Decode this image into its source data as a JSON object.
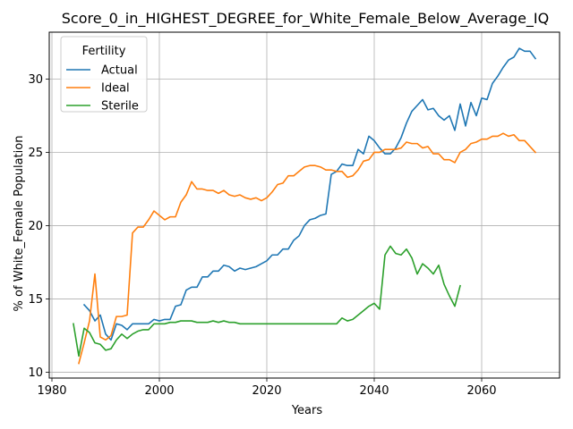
{
  "chart_data": {
    "type": "line",
    "title": "Score_0_in_HIGHEST_DEGREE_for_White_Female_Below_Average_IQ",
    "xlabel": "Years",
    "ylabel": "% of White_Female Population",
    "xlim": [
      1979.5,
      2074.5
    ],
    "ylim": [
      9.6,
      33.2
    ],
    "xticks": [
      1980,
      2000,
      2020,
      2040,
      2060
    ],
    "yticks": [
      10,
      15,
      20,
      25,
      30
    ],
    "grid": true,
    "legend": {
      "title": "Fertility",
      "placement": "top-left"
    },
    "colors": {
      "Actual": "#1f77b4",
      "Ideal": "#ff7f0e",
      "Sterile": "#2ca02c"
    },
    "series": [
      {
        "name": "Actual",
        "x": [
          1986,
          1987,
          1988,
          1989,
          1990,
          1991,
          1992,
          1993,
          1994,
          1995,
          1996,
          1997,
          1998,
          1999,
          2000,
          2001,
          2002,
          2003,
          2004,
          2005,
          2006,
          2007,
          2008,
          2009,
          2010,
          2011,
          2012,
          2013,
          2014,
          2015,
          2016,
          2017,
          2018,
          2019,
          2020,
          2021,
          2022,
          2023,
          2024,
          2025,
          2026,
          2027,
          2028,
          2029,
          2030,
          2031,
          2032,
          2033,
          2034,
          2035,
          2036,
          2037,
          2038,
          2039,
          2040,
          2041,
          2042,
          2043,
          2044,
          2045,
          2046,
          2047,
          2048,
          2049,
          2050,
          2051,
          2052,
          2053,
          2054,
          2055,
          2056,
          2057,
          2058,
          2059,
          2060,
          2061,
          2062,
          2063,
          2064,
          2065,
          2066,
          2067,
          2068,
          2069,
          2070
        ],
        "y": [
          14.6,
          14.2,
          13.5,
          13.9,
          12.6,
          12.2,
          13.3,
          13.2,
          12.9,
          13.3,
          13.3,
          13.3,
          13.3,
          13.6,
          13.5,
          13.6,
          13.6,
          14.5,
          14.6,
          15.6,
          15.8,
          15.8,
          16.5,
          16.5,
          16.9,
          16.9,
          17.3,
          17.2,
          16.9,
          17.1,
          17.0,
          17.1,
          17.2,
          17.4,
          17.6,
          18.0,
          18.0,
          18.4,
          18.4,
          19.0,
          19.3,
          20.0,
          20.4,
          20.5,
          20.7,
          20.8,
          23.5,
          23.7,
          24.2,
          24.1,
          24.1,
          25.2,
          24.9,
          26.1,
          25.8,
          25.3,
          24.9,
          24.9,
          25.3,
          26.0,
          27.0,
          27.8,
          28.2,
          28.6,
          27.9,
          28.0,
          27.5,
          27.2,
          27.5,
          26.5,
          28.3,
          26.8,
          28.4,
          27.5,
          28.7,
          28.6,
          29.7,
          30.2,
          30.8,
          31.3,
          31.5,
          32.1,
          31.9,
          31.9,
          31.4
        ]
      },
      {
        "name": "Ideal",
        "x": [
          1985,
          1986,
          1987,
          1988,
          1989,
          1990,
          1991,
          1992,
          1993,
          1994,
          1995,
          1996,
          1997,
          1998,
          1999,
          2000,
          2001,
          2002,
          2003,
          2004,
          2005,
          2006,
          2007,
          2008,
          2009,
          2010,
          2011,
          2012,
          2013,
          2014,
          2015,
          2016,
          2017,
          2018,
          2019,
          2020,
          2021,
          2022,
          2023,
          2024,
          2025,
          2026,
          2027,
          2028,
          2029,
          2030,
          2031,
          2032,
          2033,
          2034,
          2035,
          2036,
          2037,
          2038,
          2039,
          2040,
          2041,
          2042,
          2043,
          2044,
          2045,
          2046,
          2047,
          2048,
          2049,
          2050,
          2051,
          2052,
          2053,
          2054,
          2055,
          2056,
          2057,
          2058,
          2059,
          2060,
          2061,
          2062,
          2063,
          2064,
          2065,
          2066,
          2067,
          2068,
          2069,
          2070
        ],
        "y": [
          10.6,
          12.0,
          13.5,
          16.7,
          12.4,
          12.2,
          12.5,
          13.8,
          13.8,
          13.9,
          19.5,
          19.9,
          19.9,
          20.4,
          21.0,
          20.7,
          20.4,
          20.6,
          20.6,
          21.6,
          22.1,
          23.0,
          22.5,
          22.5,
          22.4,
          22.4,
          22.2,
          22.4,
          22.1,
          22.0,
          22.1,
          21.9,
          21.8,
          21.9,
          21.7,
          21.9,
          22.3,
          22.8,
          22.9,
          23.4,
          23.4,
          23.7,
          24.0,
          24.1,
          24.1,
          24.0,
          23.8,
          23.8,
          23.7,
          23.7,
          23.3,
          23.4,
          23.8,
          24.4,
          24.5,
          25.0,
          25.0,
          25.2,
          25.2,
          25.2,
          25.3,
          25.7,
          25.6,
          25.6,
          25.3,
          25.4,
          24.9,
          24.9,
          24.5,
          24.5,
          24.3,
          25.0,
          25.2,
          25.6,
          25.7,
          25.9,
          25.9,
          26.1,
          26.1,
          26.3,
          26.1,
          26.2,
          25.8,
          25.8,
          25.4,
          25.0
        ]
      },
      {
        "name": "Sterile",
        "x": [
          1984,
          1985,
          1986,
          1987,
          1988,
          1989,
          1990,
          1991,
          1992,
          1993,
          1994,
          1995,
          1996,
          1997,
          1998,
          1999,
          2000,
          2001,
          2002,
          2003,
          2004,
          2005,
          2006,
          2007,
          2008,
          2009,
          2010,
          2011,
          2012,
          2013,
          2014,
          2015,
          2016,
          2017,
          2018,
          2019,
          2020,
          2021,
          2022,
          2023,
          2024,
          2025,
          2026,
          2027,
          2028,
          2029,
          2030,
          2031,
          2032,
          2033,
          2034,
          2035,
          2036,
          2037,
          2038,
          2039,
          2040,
          2041,
          2042,
          2043,
          2044,
          2045,
          2046,
          2047,
          2048,
          2049,
          2050,
          2051,
          2052,
          2053,
          2054,
          2055,
          2056
        ],
        "y": [
          13.3,
          11.1,
          13.0,
          12.7,
          12.0,
          11.9,
          11.5,
          11.6,
          12.2,
          12.6,
          12.3,
          12.6,
          12.8,
          12.9,
          12.9,
          13.3,
          13.3,
          13.3,
          13.4,
          13.4,
          13.5,
          13.5,
          13.5,
          13.4,
          13.4,
          13.4,
          13.5,
          13.4,
          13.5,
          13.4,
          13.4,
          13.3,
          13.3,
          13.3,
          13.3,
          13.3,
          13.3,
          13.3,
          13.3,
          13.3,
          13.3,
          13.3,
          13.3,
          13.3,
          13.3,
          13.3,
          13.3,
          13.3,
          13.3,
          13.3,
          13.7,
          13.5,
          13.6,
          13.9,
          14.2,
          14.5,
          14.7,
          14.3,
          18.0,
          18.6,
          18.1,
          18.0,
          18.4,
          17.8,
          16.7,
          17.4,
          17.1,
          16.7,
          17.3,
          16.0,
          15.2,
          14.5,
          15.9
        ]
      }
    ]
  }
}
